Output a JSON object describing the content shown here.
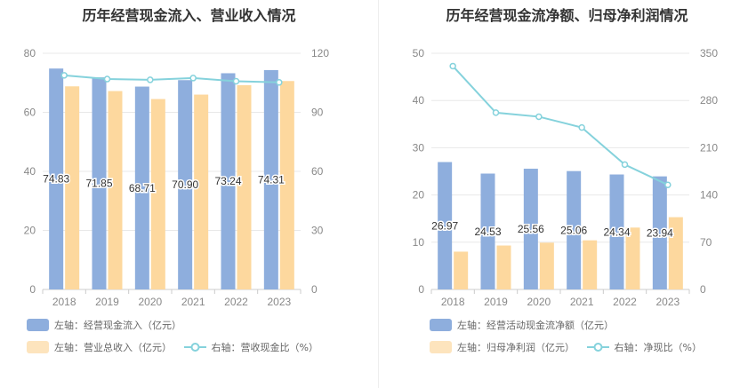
{
  "colors": {
    "bar_left": "#8eaedd",
    "bar_right": "#fdd89e",
    "line": "#85d2dc"
  },
  "chart_data": [
    {
      "type": "bar",
      "title": "历年经营现金流入、营业收入情况",
      "categories": [
        "2018",
        "2019",
        "2020",
        "2021",
        "2022",
        "2023"
      ],
      "left_axis": {
        "min": 0,
        "max": 80,
        "ticks": [
          "0",
          "20",
          "40",
          "60",
          "80"
        ]
      },
      "right_axis": {
        "min": 0,
        "max": 120,
        "ticks": [
          "0",
          "30",
          "60",
          "90",
          "120"
        ]
      },
      "series": [
        {
          "name": "左轴：经营现金流入（亿元）",
          "type": "bar",
          "axis": "left",
          "values": [
            74.83,
            71.85,
            68.71,
            70.9,
            73.24,
            74.31
          ],
          "labels": [
            "74.83",
            "71.85",
            "68.71",
            "70.90",
            "73.24",
            "74.31"
          ]
        },
        {
          "name": "左轴：营业总收入（亿元）",
          "type": "bar",
          "axis": "left",
          "values": [
            68.8,
            67.2,
            64.5,
            66.0,
            69.2,
            70.6
          ]
        },
        {
          "name": "右轴：营收现金比（%）",
          "type": "line",
          "axis": "right",
          "values": [
            108.8,
            106.9,
            106.5,
            107.4,
            105.8,
            105.2
          ]
        }
      ],
      "grid": true,
      "legend_position": "bottom-left"
    },
    {
      "type": "bar",
      "title": "历年经营现金流净额、归母净利润情况",
      "categories": [
        "2018",
        "2019",
        "2020",
        "2021",
        "2022",
        "2023"
      ],
      "left_axis": {
        "min": 0,
        "max": 50,
        "ticks": [
          "0",
          "10",
          "20",
          "30",
          "40",
          "50"
        ]
      },
      "right_axis": {
        "min": 0,
        "max": 350,
        "ticks": [
          "0",
          "70",
          "140",
          "210",
          "280",
          "350"
        ]
      },
      "series": [
        {
          "name": "左轴：经营活动现金流净额（亿元）",
          "type": "bar",
          "axis": "left",
          "values": [
            26.97,
            24.53,
            25.56,
            25.06,
            24.34,
            23.94
          ],
          "labels": [
            "26.97",
            "24.53",
            "25.56",
            "25.06",
            "24.34",
            "23.94"
          ]
        },
        {
          "name": "左轴：归母净利润（亿元）",
          "type": "bar",
          "axis": "left",
          "values": [
            8.0,
            9.3,
            9.9,
            10.4,
            13.1,
            15.3
          ]
        },
        {
          "name": "右轴：净现比（%）",
          "type": "line",
          "axis": "right",
          "values": [
            331,
            262,
            256,
            240,
            185,
            155
          ]
        }
      ],
      "grid": true,
      "legend_position": "bottom-left"
    }
  ]
}
